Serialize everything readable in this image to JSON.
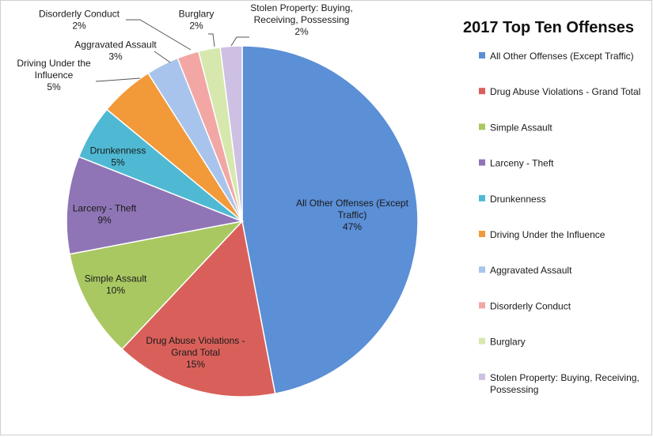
{
  "chart_data": {
    "type": "pie",
    "title": "2017 Top Ten Offenses",
    "legend_position": "right",
    "slices": [
      {
        "label": "All Other Offenses (Except Traffic)",
        "label_lines": [
          "All Other Offenses (Except",
          "Traffic)"
        ],
        "value": 47,
        "pct_label": "47%",
        "color": "#5b8fd6",
        "legend_lines": [
          "All Other Offenses (Except Traffic)"
        ]
      },
      {
        "label": "Drug Abuse Violations - Grand Total",
        "label_lines": [
          "Drug Abuse Violations -",
          "Grand Total"
        ],
        "value": 15,
        "pct_label": "15%",
        "color": "#d9605a",
        "legend_lines": [
          "Drug Abuse Violations - Grand Total"
        ]
      },
      {
        "label": "Simple Assault",
        "label_lines": [
          "Simple Assault"
        ],
        "value": 10,
        "pct_label": "10%",
        "color": "#a9c862",
        "legend_lines": [
          "Simple Assault"
        ]
      },
      {
        "label": "Larceny - Theft",
        "label_lines": [
          "Larceny - Theft"
        ],
        "value": 9,
        "pct_label": "9%",
        "color": "#8f75b5",
        "legend_lines": [
          "Larceny - Theft"
        ]
      },
      {
        "label": "Drunkenness",
        "label_lines": [
          "Drunkenness"
        ],
        "value": 5,
        "pct_label": "5%",
        "color": "#4fb9d3",
        "legend_lines": [
          "Drunkenness"
        ]
      },
      {
        "label": "Driving Under the Influence",
        "label_lines": [
          "Driving Under the",
          "Influence"
        ],
        "value": 5,
        "pct_label": "5%",
        "color": "#f2993a",
        "legend_lines": [
          "Driving Under the Influence"
        ]
      },
      {
        "label": "Aggravated Assault",
        "label_lines": [
          "Aggravated Assault"
        ],
        "value": 3,
        "pct_label": "3%",
        "color": "#a8c4ec",
        "legend_lines": [
          "Aggravated Assault"
        ]
      },
      {
        "label": "Disorderly Conduct",
        "label_lines": [
          "Disorderly Conduct"
        ],
        "value": 2,
        "pct_label": "2%",
        "color": "#f2a7a4",
        "legend_lines": [
          "Disorderly Conduct"
        ]
      },
      {
        "label": "Burglary",
        "label_lines": [
          "Burglary"
        ],
        "value": 2,
        "pct_label": "2%",
        "color": "#d6e8ad",
        "legend_lines": [
          "Burglary"
        ]
      },
      {
        "label": "Stolen Property: Buying, Receiving, Possessing",
        "label_lines": [
          "Stolen Property: Buying,",
          "Receiving, Possessing"
        ],
        "value": 2,
        "pct_label": "2%",
        "color": "#cdc0e2",
        "legend_lines": [
          "Stolen Property: Buying, Receiving,",
          "Possessing"
        ]
      }
    ]
  }
}
